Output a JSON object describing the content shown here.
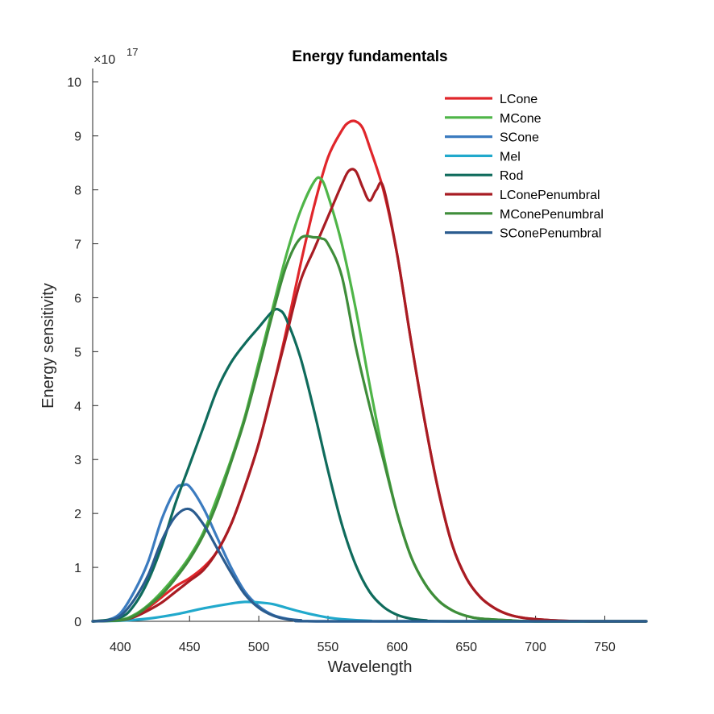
{
  "chart_data": {
    "type": "line",
    "title": "Energy fundamentals",
    "xlabel": "Wavelength",
    "ylabel": "Energy sensitivity",
    "y_multiplier": "×10",
    "y_exponent": "17",
    "xlim": [
      380,
      780
    ],
    "ylim": [
      0,
      10.25
    ],
    "xticks": [
      400,
      450,
      500,
      550,
      600,
      650,
      700,
      750
    ],
    "yticks": [
      0,
      1,
      2,
      3,
      4,
      5,
      6,
      7,
      8,
      9,
      10
    ],
    "grid": false,
    "legend_position": "top-right",
    "series": [
      {
        "name": "LCone",
        "color": "#e0262b",
        "points": [
          [
            380,
            0
          ],
          [
            400,
            0.03
          ],
          [
            410,
            0.1
          ],
          [
            420,
            0.25
          ],
          [
            430,
            0.45
          ],
          [
            440,
            0.65
          ],
          [
            450,
            0.8
          ],
          [
            460,
            1.0
          ],
          [
            470,
            1.3
          ],
          [
            480,
            1.8
          ],
          [
            490,
            2.5
          ],
          [
            500,
            3.3
          ],
          [
            510,
            4.3
          ],
          [
            520,
            5.4
          ],
          [
            530,
            6.6
          ],
          [
            540,
            7.7
          ],
          [
            550,
            8.6
          ],
          [
            560,
            9.1
          ],
          [
            565,
            9.25
          ],
          [
            570,
            9.27
          ],
          [
            575,
            9.15
          ],
          [
            580,
            8.8
          ],
          [
            590,
            8.0
          ],
          [
            600,
            6.8
          ],
          [
            610,
            5.2
          ],
          [
            620,
            3.7
          ],
          [
            630,
            2.4
          ],
          [
            640,
            1.4
          ],
          [
            650,
            0.8
          ],
          [
            660,
            0.45
          ],
          [
            670,
            0.25
          ],
          [
            680,
            0.13
          ],
          [
            690,
            0.07
          ],
          [
            700,
            0.04
          ],
          [
            720,
            0.01
          ],
          [
            740,
            0
          ],
          [
            780,
            0
          ]
        ]
      },
      {
        "name": "MCone",
        "color": "#4fb548",
        "points": [
          [
            380,
            0
          ],
          [
            400,
            0.03
          ],
          [
            410,
            0.12
          ],
          [
            420,
            0.3
          ],
          [
            430,
            0.55
          ],
          [
            440,
            0.85
          ],
          [
            450,
            1.2
          ],
          [
            460,
            1.65
          ],
          [
            470,
            2.3
          ],
          [
            480,
            3.0
          ],
          [
            490,
            3.8
          ],
          [
            500,
            4.8
          ],
          [
            510,
            5.8
          ],
          [
            520,
            6.8
          ],
          [
            530,
            7.6
          ],
          [
            540,
            8.15
          ],
          [
            545,
            8.2
          ],
          [
            550,
            7.9
          ],
          [
            560,
            7.0
          ],
          [
            570,
            5.8
          ],
          [
            580,
            4.4
          ],
          [
            590,
            3.1
          ],
          [
            600,
            2.0
          ],
          [
            610,
            1.2
          ],
          [
            620,
            0.7
          ],
          [
            630,
            0.38
          ],
          [
            640,
            0.2
          ],
          [
            650,
            0.1
          ],
          [
            660,
            0.05
          ],
          [
            680,
            0.02
          ],
          [
            700,
            0
          ],
          [
            780,
            0
          ]
        ]
      },
      {
        "name": "SCone",
        "color": "#3b7bbf",
        "points": [
          [
            380,
            0
          ],
          [
            390,
            0.02
          ],
          [
            400,
            0.15
          ],
          [
            410,
            0.55
          ],
          [
            420,
            1.1
          ],
          [
            430,
            1.9
          ],
          [
            440,
            2.45
          ],
          [
            445,
            2.52
          ],
          [
            450,
            2.5
          ],
          [
            460,
            2.1
          ],
          [
            470,
            1.55
          ],
          [
            480,
            1.0
          ],
          [
            490,
            0.55
          ],
          [
            500,
            0.28
          ],
          [
            510,
            0.12
          ],
          [
            520,
            0.05
          ],
          [
            530,
            0.02
          ],
          [
            550,
            0
          ],
          [
            780,
            0
          ]
        ]
      },
      {
        "name": "Mel",
        "color": "#21a9cc",
        "points": [
          [
            380,
            0
          ],
          [
            400,
            0.01
          ],
          [
            420,
            0.05
          ],
          [
            440,
            0.13
          ],
          [
            460,
            0.24
          ],
          [
            480,
            0.33
          ],
          [
            490,
            0.36
          ],
          [
            500,
            0.35
          ],
          [
            510,
            0.32
          ],
          [
            520,
            0.25
          ],
          [
            530,
            0.18
          ],
          [
            540,
            0.12
          ],
          [
            550,
            0.07
          ],
          [
            560,
            0.04
          ],
          [
            580,
            0.01
          ],
          [
            600,
            0
          ],
          [
            780,
            0
          ]
        ]
      },
      {
        "name": "Rod",
        "color": "#0f6b5c",
        "points": [
          [
            380,
            0
          ],
          [
            400,
            0.07
          ],
          [
            410,
            0.3
          ],
          [
            420,
            0.75
          ],
          [
            430,
            1.4
          ],
          [
            440,
            2.2
          ],
          [
            450,
            2.9
          ],
          [
            460,
            3.6
          ],
          [
            470,
            4.3
          ],
          [
            480,
            4.8
          ],
          [
            490,
            5.15
          ],
          [
            500,
            5.45
          ],
          [
            510,
            5.75
          ],
          [
            515,
            5.77
          ],
          [
            520,
            5.6
          ],
          [
            530,
            4.9
          ],
          [
            540,
            3.9
          ],
          [
            550,
            2.8
          ],
          [
            560,
            1.8
          ],
          [
            570,
            1.05
          ],
          [
            580,
            0.55
          ],
          [
            590,
            0.27
          ],
          [
            600,
            0.12
          ],
          [
            610,
            0.05
          ],
          [
            620,
            0.02
          ],
          [
            640,
            0
          ],
          [
            780,
            0
          ]
        ]
      },
      {
        "name": "LConePenumbral",
        "color": "#a81c23",
        "points": [
          [
            380,
            0
          ],
          [
            400,
            0.02
          ],
          [
            410,
            0.08
          ],
          [
            420,
            0.2
          ],
          [
            430,
            0.35
          ],
          [
            440,
            0.55
          ],
          [
            450,
            0.75
          ],
          [
            460,
            0.95
          ],
          [
            470,
            1.3
          ],
          [
            480,
            1.8
          ],
          [
            490,
            2.5
          ],
          [
            500,
            3.3
          ],
          [
            510,
            4.3
          ],
          [
            520,
            5.3
          ],
          [
            530,
            6.3
          ],
          [
            540,
            6.9
          ],
          [
            550,
            7.5
          ],
          [
            560,
            8.1
          ],
          [
            565,
            8.35
          ],
          [
            570,
            8.35
          ],
          [
            575,
            8.05
          ],
          [
            580,
            7.8
          ],
          [
            585,
            8.0
          ],
          [
            590,
            8.05
          ],
          [
            600,
            6.8
          ],
          [
            610,
            5.2
          ],
          [
            620,
            3.7
          ],
          [
            630,
            2.4
          ],
          [
            640,
            1.4
          ],
          [
            650,
            0.8
          ],
          [
            660,
            0.45
          ],
          [
            670,
            0.25
          ],
          [
            680,
            0.13
          ],
          [
            690,
            0.07
          ],
          [
            700,
            0.04
          ],
          [
            720,
            0.01
          ],
          [
            740,
            0
          ],
          [
            780,
            0
          ]
        ]
      },
      {
        "name": "MConePenumbral",
        "color": "#3f8d3a",
        "points": [
          [
            380,
            0
          ],
          [
            400,
            0.02
          ],
          [
            410,
            0.1
          ],
          [
            420,
            0.28
          ],
          [
            430,
            0.5
          ],
          [
            440,
            0.8
          ],
          [
            450,
            1.15
          ],
          [
            460,
            1.6
          ],
          [
            470,
            2.2
          ],
          [
            480,
            2.95
          ],
          [
            490,
            3.75
          ],
          [
            500,
            4.7
          ],
          [
            510,
            5.7
          ],
          [
            520,
            6.6
          ],
          [
            530,
            7.1
          ],
          [
            540,
            7.12
          ],
          [
            545,
            7.1
          ],
          [
            550,
            7.0
          ],
          [
            560,
            6.4
          ],
          [
            570,
            5.1
          ],
          [
            580,
            4.0
          ],
          [
            590,
            3.0
          ],
          [
            600,
            2.0
          ],
          [
            610,
            1.2
          ],
          [
            620,
            0.7
          ],
          [
            630,
            0.38
          ],
          [
            640,
            0.2
          ],
          [
            650,
            0.1
          ],
          [
            660,
            0.05
          ],
          [
            680,
            0.02
          ],
          [
            700,
            0
          ],
          [
            780,
            0
          ]
        ]
      },
      {
        "name": "SConePenumbral",
        "color": "#2b5c8f",
        "points": [
          [
            380,
            0
          ],
          [
            390,
            0.01
          ],
          [
            400,
            0.1
          ],
          [
            410,
            0.4
          ],
          [
            420,
            0.85
          ],
          [
            430,
            1.5
          ],
          [
            440,
            1.95
          ],
          [
            450,
            2.08
          ],
          [
            460,
            1.8
          ],
          [
            470,
            1.35
          ],
          [
            480,
            0.9
          ],
          [
            490,
            0.5
          ],
          [
            500,
            0.25
          ],
          [
            510,
            0.11
          ],
          [
            520,
            0.04
          ],
          [
            530,
            0.02
          ],
          [
            550,
            0
          ],
          [
            780,
            0
          ]
        ]
      }
    ]
  }
}
